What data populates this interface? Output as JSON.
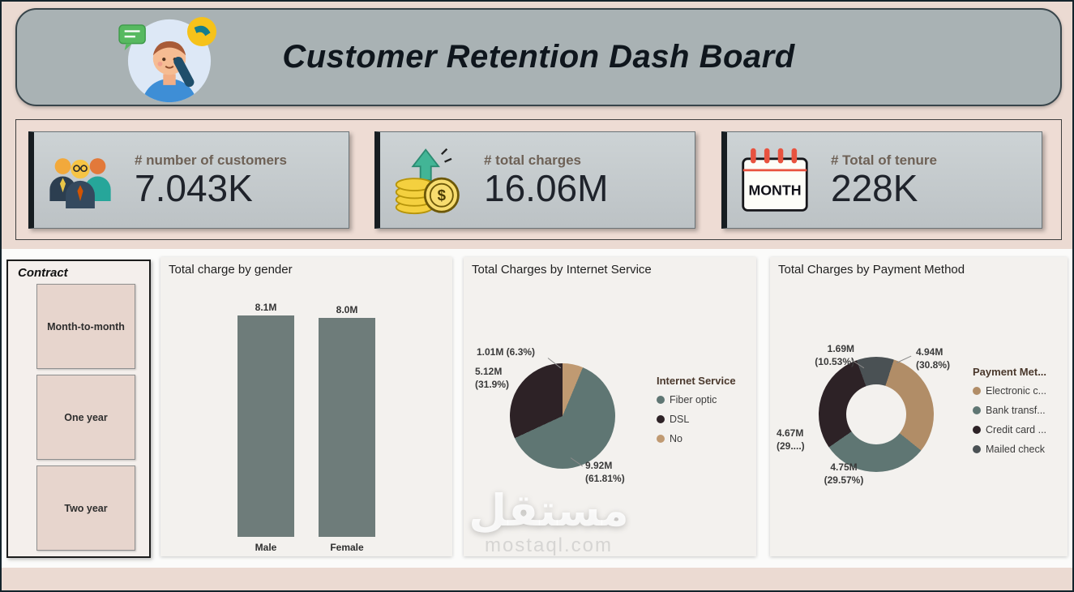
{
  "header": {
    "title": "Customer Retention Dash Board"
  },
  "watermark": {
    "primary": "مستقل",
    "secondary": "mostaql.com"
  },
  "kpi_cards": [
    {
      "icon": "customers-group-icon",
      "label": "# number of customers",
      "value": "7.043K"
    },
    {
      "icon": "coins-up-arrow-icon",
      "label": "# total charges",
      "value": "16.06M"
    },
    {
      "icon": "calendar-month-icon",
      "calendar_label": "MONTH",
      "label": "# Total of tenure",
      "value": "228K"
    }
  ],
  "contract_slicer": {
    "title": "Contract",
    "options": [
      {
        "label": "Month-to-month"
      },
      {
        "label": "One year"
      },
      {
        "label": "Two year"
      }
    ]
  },
  "chart_data": [
    {
      "type": "bar",
      "title": "Total charge by gender",
      "categories": [
        "Male",
        "Female"
      ],
      "values": [
        8.1,
        8.0
      ],
      "value_labels": [
        "8.1M",
        "8.0M"
      ],
      "unit": "M",
      "ylim": [
        0,
        8.6
      ],
      "bar_color": "#6e7c7a",
      "grid": false,
      "legend_position": "none"
    },
    {
      "type": "pie",
      "title": "Total Charges by Internet Service",
      "legend_title": "Internet Service",
      "legend_position": "right",
      "start_angle_deg": 0,
      "slices": [
        {
          "name": "No",
          "value": 1.01,
          "percent": 6.3,
          "value_label": "1.01M (6.3%)",
          "color": "#c09a72"
        },
        {
          "name": "Fiber optic",
          "value": 9.92,
          "percent": 61.81,
          "value_label": "9.92M\n(61.81%)",
          "color": "#5f7673"
        },
        {
          "name": "DSL",
          "value": 5.12,
          "percent": 31.9,
          "value_label": "5.12M\n(31.9%)",
          "color": "#2d2226"
        }
      ],
      "legend": [
        {
          "label": "Fiber optic",
          "color": "#5f7673"
        },
        {
          "label": "DSL",
          "color": "#2d2226"
        },
        {
          "label": "No",
          "color": "#c09a72"
        }
      ]
    },
    {
      "type": "donut",
      "title": "Total Charges by Payment Method",
      "legend_title": "Payment Met...",
      "legend_position": "right",
      "start_angle_deg": -20,
      "slices": [
        {
          "name": "Mailed check",
          "value": 1.69,
          "percent": 10.53,
          "value_label": "1.69M\n(10.53%)",
          "color": "#4a5154"
        },
        {
          "name": "Electronic c...",
          "value": 4.94,
          "percent": 30.8,
          "value_label": "4.94M\n(30.8%)",
          "color": "#b18d67"
        },
        {
          "name": "Bank transf...",
          "value": 4.75,
          "percent": 29.57,
          "value_label": "4.75M\n(29.57%)",
          "color": "#5f7673"
        },
        {
          "name": "Credit card ...",
          "value": 4.67,
          "percent": 29.1,
          "value_label": "4.67M\n(29....)",
          "color": "#2d2226"
        }
      ],
      "legend": [
        {
          "label": "Electronic c...",
          "color": "#b18d67"
        },
        {
          "label": "Bank transf...",
          "color": "#5f7673"
        },
        {
          "label": "Credit card ...",
          "color": "#2d2226"
        },
        {
          "label": "Mailed check",
          "color": "#4a5154"
        }
      ]
    }
  ]
}
